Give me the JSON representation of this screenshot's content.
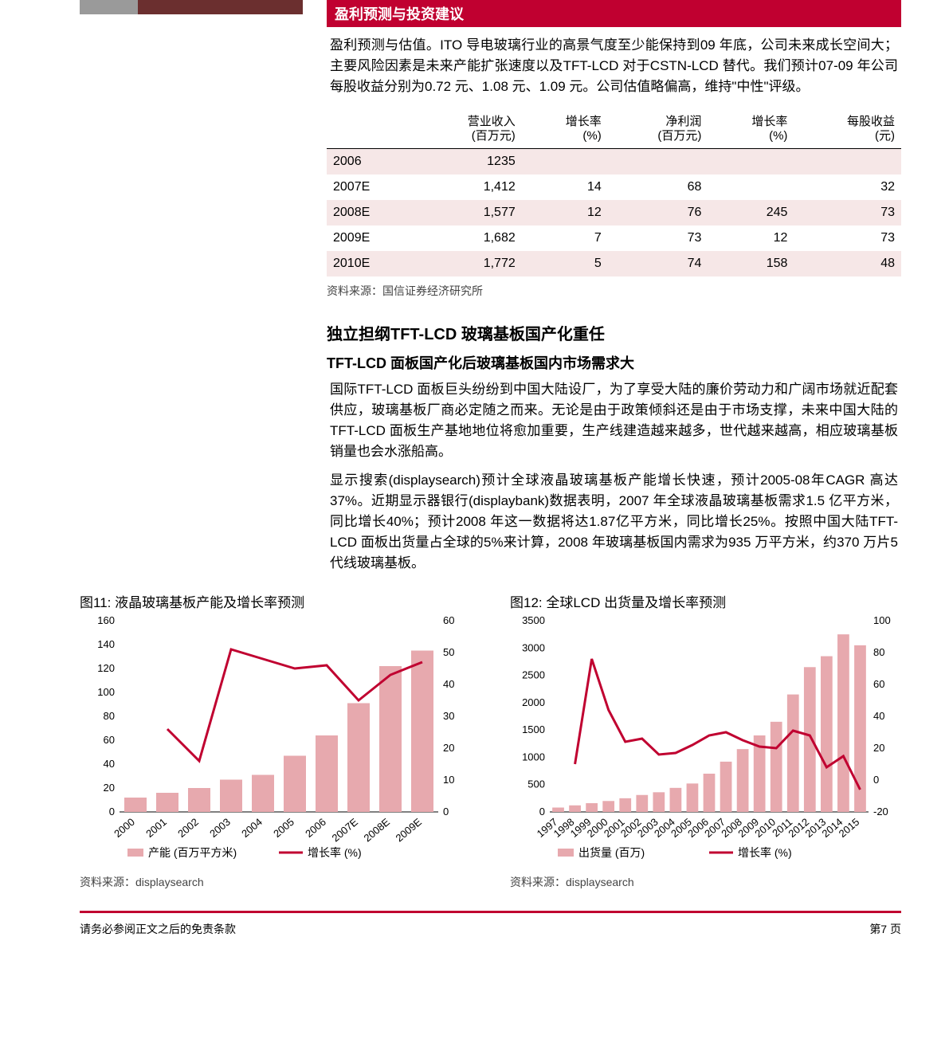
{
  "colors": {
    "brand_red": "#c00030",
    "bar_pink": "#e7a9ae",
    "stripe_grey": "#9a9a9a",
    "stripe_dark": "#6b2f2f",
    "shade_row": "#f6e7e7"
  },
  "left_box": {
    "stripe": [
      {
        "color": "#9a9a9a",
        "width_pct": 26
      },
      {
        "color": "#6b2f2f",
        "width_pct": 74
      }
    ]
  },
  "right_box": {
    "title": "盈利预测与投资建议",
    "para": "盈利预测与估值。ITO 导电玻璃行业的高景气度至少能保持到09 年底，公司未来成长空间大；主要风险因素是未来产能扩张速度以及TFT-LCD 对于CSTN-LCD 替代。我们预计07-09 年公司每股收益分别为0.72 元、1.08 元、1.09 元。公司估值略偏高，维持\"中性\"评级。",
    "table": {
      "headers": [
        "",
        "营业收入\n(百万元)",
        "增长率\n(%)",
        "净利润\n(百万元)",
        "增长率\n(%)",
        "每股收益\n(元)"
      ],
      "rows": [
        {
          "cells": [
            "2006",
            "1235",
            "",
            "",
            "",
            ""
          ],
          "shade": true
        },
        {
          "cells": [
            "2007E",
            "1,412",
            "14",
            "68",
            "",
            "32"
          ],
          "shade": false
        },
        {
          "cells": [
            "2008E",
            "1,577",
            "12",
            "76",
            "245",
            "73"
          ],
          "shade": true
        },
        {
          "cells": [
            "2009E",
            "1,682",
            "7",
            "73",
            "12",
            "73"
          ],
          "shade": false
        },
        {
          "cells": [
            "2010E",
            "1,772",
            "5",
            "74",
            "158",
            "48"
          ],
          "shade": true
        }
      ]
    },
    "source": "资料来源：国信证券经济研究所"
  },
  "section": {
    "title": "独立担纲TFT-LCD 玻璃基板国产化重任",
    "subtitle": "TFT-LCD 面板国产化后玻璃基板国内市场需求大",
    "para1": "国际TFT-LCD 面板巨头纷纷到中国大陆设厂，为了享受大陆的廉价劳动力和广阔市场就近配套供应，玻璃基板厂商必定随之而来。无论是由于政策倾斜还是由于市场支撑，未来中国大陆的TFT-LCD 面板生产基地地位将愈加重要，生产线建造越来越多，世代越来越高，相应玻璃基板销量也会水涨船高。",
    "para2": "显示搜索(displaysearch)预计全球液晶玻璃基板产能增长快速，预计2005-08年CAGR 高达37%。近期显示器银行(displaybank)数据表明，2007 年全球液晶玻璃基板需求1.5 亿平方米，同比增长40%；预计2008 年这一数据将达1.87亿平方米，同比增长25%。按照中国大陆TFT-LCD 面板出货量占全球的5%来计算，2008 年玻璃基板国内需求为935 万平方米，约370 万片5 代线玻璃基板。"
  },
  "charts_row_title": {
    "left": "图11: 液晶玻璃基板产能及增长率预测",
    "right": "图12: 全球LCD 出货量及增长率预测"
  },
  "chart_left": {
    "type": "bar+line",
    "categories": [
      "2000",
      "2001",
      "2002",
      "2003",
      "2004",
      "2005",
      "2006",
      "2007E",
      "2008E",
      "2009E"
    ],
    "bar_values": [
      12,
      16,
      20,
      27,
      31,
      47,
      64,
      91,
      122,
      135
    ],
    "bar_legend": "产能 (百万平方米)",
    "line_values": [
      26,
      16,
      51,
      48,
      45,
      46,
      35,
      43,
      47
    ],
    "line_x_start": 1,
    "line_legend": "增长率 (%)",
    "y_left": {
      "min": 0,
      "max": 160,
      "step": 20
    },
    "y_right": {
      "min": 0,
      "max": 60,
      "step": 10
    },
    "bar_color": "#e7a9ae",
    "line_color": "#c00030",
    "background": "#ffffff",
    "font_size": 13,
    "line_width": 3
  },
  "chart_right": {
    "type": "bar+line",
    "categories": [
      "1997",
      "1998",
      "1999",
      "2000",
      "2001",
      "2002",
      "2003",
      "2004",
      "2005",
      "2006",
      "2007",
      "2008",
      "2009",
      "2010",
      "2011",
      "2012",
      "2013",
      "2014",
      "2015"
    ],
    "bar_values": [
      80,
      120,
      160,
      200,
      250,
      310,
      360,
      440,
      520,
      700,
      920,
      1150,
      1400,
      1650,
      2150,
      2650,
      2850,
      3250,
      3050
    ],
    "bar_legend": "出货量 (百万)",
    "line_values": [
      10,
      76,
      44,
      24,
      26,
      16,
      17,
      22,
      28,
      30,
      25,
      21,
      20,
      31,
      28,
      8,
      15,
      -6
    ],
    "line_x_start": 1,
    "line_legend": "增长率 (%)",
    "y_left": {
      "min": 0,
      "max": 3500,
      "step": 500
    },
    "y_right": {
      "min": -20,
      "max": 100,
      "step": 20
    },
    "bar_color": "#e7a9ae",
    "line_color": "#c00030",
    "background": "#ffffff",
    "font_size": 13,
    "line_width": 3
  },
  "chart_source": {
    "left": "资料来源：displaysearch",
    "right": "资料来源：displaysearch"
  },
  "footer": {
    "left": "请务必参阅正文之后的免责条款",
    "right": "第7 页"
  }
}
